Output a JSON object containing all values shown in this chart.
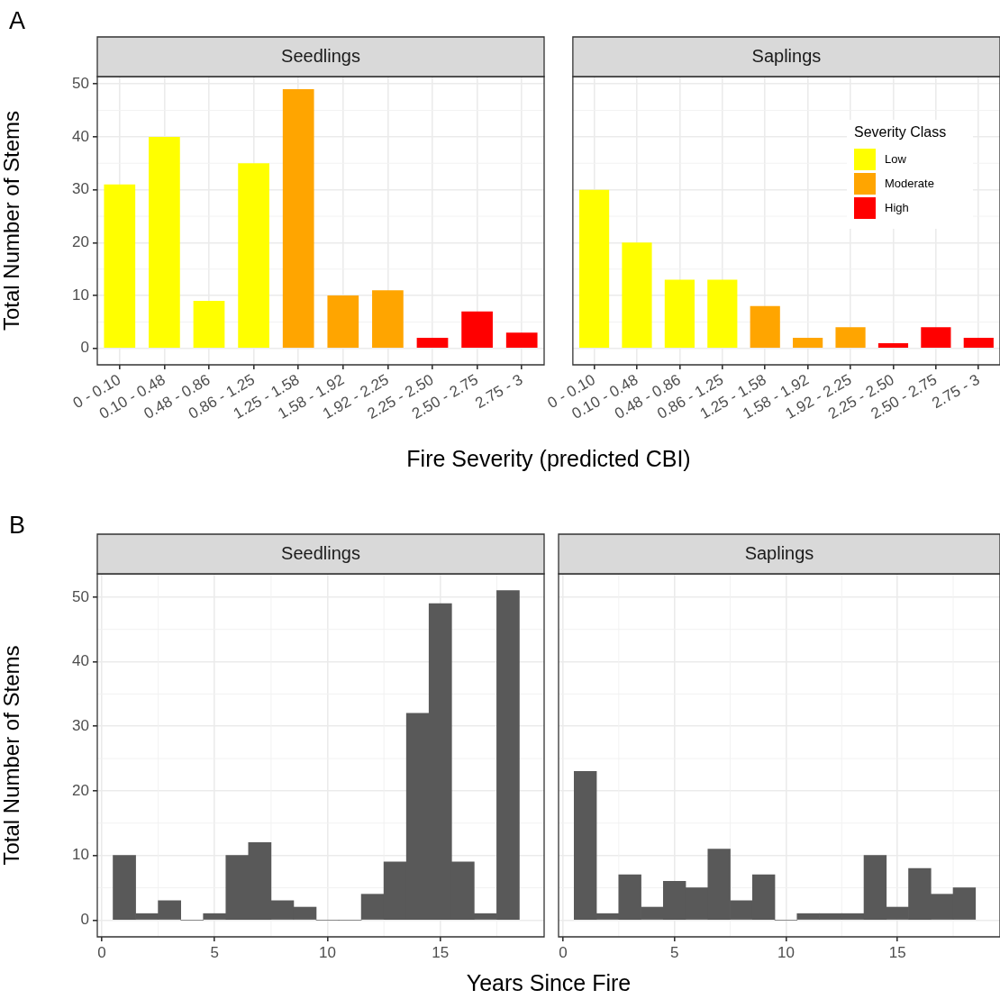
{
  "chart_data": [
    {
      "type": "bar",
      "title": "Seedlings",
      "annotations": [
        "A"
      ],
      "xlabel": "Fire Severity (predicted CBI)",
      "ylabel": "Total Number of Stems",
      "categories": [
        "0 - 0.10",
        "0.10 - 0.48",
        "0.48 - 0.86",
        "0.86 - 1.25",
        "1.25 - 1.58",
        "1.58 - 1.92",
        "1.92 - 2.25",
        "2.25 - 2.50",
        "2.50 - 2.75",
        "2.75 - 3"
      ],
      "series": [
        {
          "color": "#ffff00",
          "values": [
            31,
            40,
            9,
            35,
            null,
            null,
            null,
            null,
            null,
            null
          ]
        },
        {
          "color": "#ffa500",
          "values": [
            null,
            null,
            null,
            null,
            49,
            10,
            11,
            null,
            null,
            null
          ]
        },
        {
          "color": "#ff0000",
          "values": [
            null,
            null,
            null,
            null,
            null,
            null,
            null,
            2,
            7,
            3
          ]
        }
      ],
      "ylim": [
        -3.1,
        51.4
      ],
      "yticks": [
        0,
        10,
        20,
        30,
        40,
        50
      ],
      "grid": true
    },
    {
      "type": "bar",
      "title": "Saplings",
      "categories": [
        "0 - 0.10",
        "0.10 - 0.48",
        "0.48 - 0.86",
        "0.86 - 1.25",
        "1.25 - 1.58",
        "1.58 - 1.92",
        "1.92 - 2.25",
        "2.25 - 2.50",
        "2.50 - 2.75",
        "2.75 - 3"
      ],
      "legend_title": "Severity Class",
      "legend": "top right",
      "series": [
        {
          "name": "Low",
          "color": "#ffff00",
          "values": [
            30,
            20,
            13,
            13,
            null,
            null,
            null,
            null,
            null,
            null
          ]
        },
        {
          "name": "Moderate",
          "color": "#ffa500",
          "values": [
            null,
            null,
            null,
            null,
            8,
            2,
            4,
            null,
            null,
            null
          ]
        },
        {
          "name": "High",
          "color": "#ff0000",
          "values": [
            null,
            null,
            null,
            null,
            null,
            null,
            null,
            1,
            4,
            2
          ]
        }
      ],
      "ylim": [
        -3.1,
        51.4
      ],
      "yticks": [
        0,
        10,
        20,
        30,
        40,
        50
      ],
      "grid": true,
      "tick_labels": "x"
    },
    {
      "type": "histogram",
      "title": "Seedlings",
      "annotations": [
        "B"
      ],
      "xlabel": "Years Since Fire",
      "ylabel": "Total Number of Stems",
      "color": "#595959",
      "bins": [
        0.5,
        1.5,
        2.5,
        3.5,
        4.5,
        5.5,
        6.5,
        7.5,
        8.5,
        9.5,
        10.5,
        11.5,
        12.5,
        13.5,
        14.5,
        15.5,
        16.5,
        17.5,
        18.5
      ],
      "values": [
        10,
        1,
        3,
        0,
        1,
        10,
        12,
        3,
        2,
        0,
        0,
        4,
        9,
        32,
        49,
        9,
        1,
        51
      ],
      "xlim": [
        -0.2,
        19.6
      ],
      "xticks": [
        0,
        5,
        10,
        15
      ],
      "ylim": [
        -2.6,
        53.6
      ],
      "yticks": [
        0,
        10,
        20,
        30,
        40,
        50
      ],
      "grid": true
    },
    {
      "type": "histogram",
      "title": "Saplings",
      "color": "#595959",
      "bins": [
        0.5,
        1.5,
        2.5,
        3.5,
        4.5,
        5.5,
        6.5,
        7.5,
        8.5,
        9.5,
        10.5,
        11.5,
        12.5,
        13.5,
        14.5,
        15.5,
        16.5,
        17.5,
        18.5
      ],
      "values": [
        23,
        1,
        7,
        2,
        6,
        5,
        11,
        3,
        7,
        0,
        1,
        1,
        1,
        10,
        2,
        8,
        4,
        5
      ],
      "xlim": [
        -0.2,
        19.6
      ],
      "xticks": [
        0,
        5,
        10,
        15
      ],
      "ylim": [
        -2.6,
        53.6
      ],
      "yticks": [
        0,
        10,
        20,
        30,
        40,
        50
      ],
      "grid": true,
      "tick_labels": "x"
    }
  ]
}
